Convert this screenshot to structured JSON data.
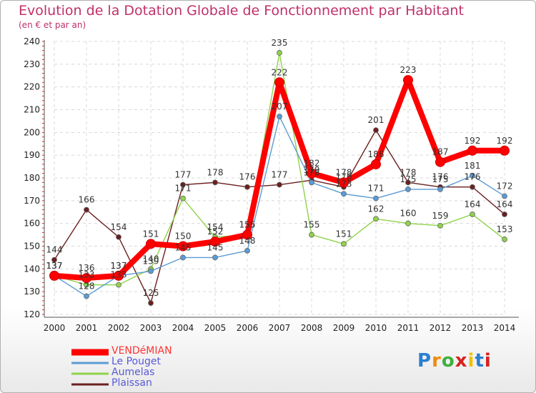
{
  "title": "Evolution de la Dotation Globale de Fonctionnement par Habitant",
  "subtitle": "(en € et par an)",
  "brand": {
    "name": "Proxiti",
    "letter_colors": [
      "#2a7fd0",
      "#f08a10",
      "#3db03d",
      "#d82020",
      "#f0c000",
      "#2a7fd0",
      "#d82020"
    ]
  },
  "chart_data": {
    "type": "line",
    "title": "Evolution de la Dotation Globale de Fonctionnement par Habitant",
    "subtitle": "(en € et par an)",
    "xlabel": "",
    "ylabel": "",
    "ylim": [
      120,
      240
    ],
    "yticks": [
      120,
      130,
      140,
      150,
      160,
      170,
      180,
      190,
      200,
      210,
      220,
      230,
      240
    ],
    "grid": true,
    "legend_position": "bottom-left",
    "x": [
      "2000",
      "2001",
      "2002",
      "2003",
      "2004",
      "2005",
      "2006",
      "2007",
      "2008",
      "2009",
      "2010",
      "2011",
      "2012",
      "2013",
      "2014"
    ],
    "series": [
      {
        "name": "VENDéMIAN",
        "color": "#ff0000",
        "values": [
          137,
          136,
          137,
          151,
          150,
          152,
          155,
          222,
          182,
          178,
          186,
          223,
          187,
          192,
          192
        ]
      },
      {
        "name": "Le Pouget",
        "color": "#5b9bd5",
        "values": [
          137,
          128,
          137,
          139,
          145,
          145,
          148,
          207,
          178,
          173,
          171,
          175,
          175,
          181,
          172
        ]
      },
      {
        "name": "Aumelas",
        "color": "#8fd34a",
        "values": [
          137,
          133,
          133,
          140,
          171,
          154,
          155,
          235,
          155,
          151,
          162,
          160,
          159,
          164,
          153
        ]
      },
      {
        "name": "Plaissan",
        "color": "#6b1f1f",
        "values": [
          144,
          166,
          154,
          125,
          177,
          178,
          176,
          177,
          179,
          176,
          201,
          178,
          176,
          176,
          164
        ]
      }
    ]
  }
}
